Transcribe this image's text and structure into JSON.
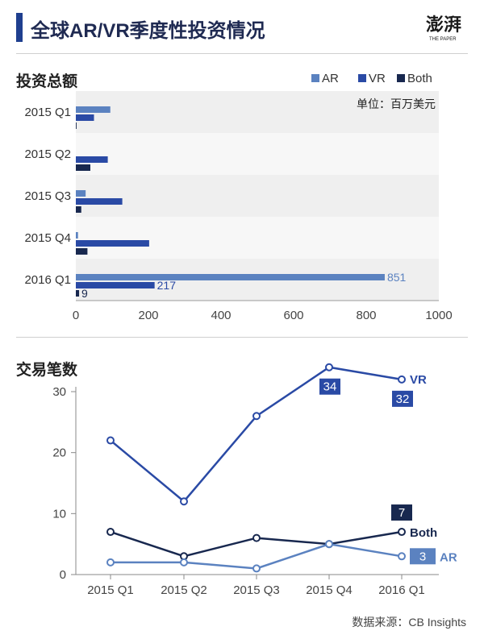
{
  "header": {
    "title": "全球AR/VR季度性投资情况"
  },
  "colors": {
    "AR": "#5b82c0",
    "VR": "#2a4aa5",
    "Both": "#18284f",
    "band": "#efefef"
  },
  "chart_data": [
    {
      "type": "bar",
      "orientation": "horizontal",
      "title": "投资总额",
      "unit_label": "单位：百万美元",
      "categories": [
        "2015 Q1",
        "2015 Q2",
        "2015 Q3",
        "2015 Q4",
        "2016 Q1"
      ],
      "series": [
        {
          "name": "AR",
          "values": [
            95,
            0,
            27,
            6,
            851
          ]
        },
        {
          "name": "VR",
          "values": [
            50,
            88,
            128,
            202,
            217
          ]
        },
        {
          "name": "Both",
          "values": [
            2,
            40,
            15,
            32,
            9
          ]
        }
      ],
      "data_labels": [
        {
          "series": "AR",
          "category": "2016 Q1",
          "text": "851"
        },
        {
          "series": "VR",
          "category": "2016 Q1",
          "text": "217"
        },
        {
          "series": "Both",
          "category": "2016 Q1",
          "text": "9"
        }
      ],
      "xlim": [
        0,
        1000
      ],
      "xticks": [
        "0",
        "200",
        "400",
        "600",
        "800",
        "1000"
      ],
      "legend": "top-right"
    },
    {
      "type": "line",
      "title": "交易笔数",
      "categories": [
        "2015 Q1",
        "2015 Q2",
        "2015 Q3",
        "2015 Q4",
        "2016 Q1"
      ],
      "series": [
        {
          "name": "VR",
          "values": [
            22,
            12,
            26,
            34,
            32
          ]
        },
        {
          "name": "Both",
          "values": [
            7,
            3,
            6,
            5,
            7
          ]
        },
        {
          "name": "AR",
          "values": [
            2,
            2,
            1,
            5,
            3
          ]
        }
      ],
      "callouts": [
        {
          "series": "VR",
          "category": "2015 Q4",
          "text": "34"
        },
        {
          "series": "VR",
          "category": "2016 Q1",
          "text": "32"
        },
        {
          "series": "Both",
          "category": "2016 Q1",
          "text": "7"
        },
        {
          "series": "AR",
          "category": "2016 Q1",
          "text": "3"
        }
      ],
      "ylim": [
        0,
        30
      ],
      "yticks": [
        "0",
        "10",
        "20",
        "30"
      ],
      "grid": false
    }
  ],
  "source": "数据来源：CB Insights"
}
